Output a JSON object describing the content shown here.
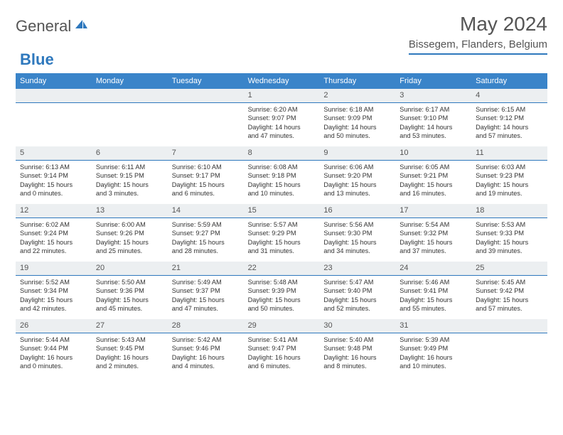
{
  "logo": {
    "word1": "General",
    "word2": "Blue"
  },
  "header": {
    "title": "May 2024",
    "location": "Bissegem, Flanders, Belgium"
  },
  "colors": {
    "accent": "#3a84c9",
    "rule": "#2e78bd",
    "dayHeader": "#eceff1"
  },
  "weekdays": [
    "Sunday",
    "Monday",
    "Tuesday",
    "Wednesday",
    "Thursday",
    "Friday",
    "Saturday"
  ],
  "weeks": [
    [
      {
        "n": "",
        "l": [
          "",
          "",
          "",
          ""
        ]
      },
      {
        "n": "",
        "l": [
          "",
          "",
          "",
          ""
        ]
      },
      {
        "n": "",
        "l": [
          "",
          "",
          "",
          ""
        ]
      },
      {
        "n": "1",
        "l": [
          "Sunrise: 6:20 AM",
          "Sunset: 9:07 PM",
          "Daylight: 14 hours",
          "and 47 minutes."
        ]
      },
      {
        "n": "2",
        "l": [
          "Sunrise: 6:18 AM",
          "Sunset: 9:09 PM",
          "Daylight: 14 hours",
          "and 50 minutes."
        ]
      },
      {
        "n": "3",
        "l": [
          "Sunrise: 6:17 AM",
          "Sunset: 9:10 PM",
          "Daylight: 14 hours",
          "and 53 minutes."
        ]
      },
      {
        "n": "4",
        "l": [
          "Sunrise: 6:15 AM",
          "Sunset: 9:12 PM",
          "Daylight: 14 hours",
          "and 57 minutes."
        ]
      }
    ],
    [
      {
        "n": "5",
        "l": [
          "Sunrise: 6:13 AM",
          "Sunset: 9:14 PM",
          "Daylight: 15 hours",
          "and 0 minutes."
        ]
      },
      {
        "n": "6",
        "l": [
          "Sunrise: 6:11 AM",
          "Sunset: 9:15 PM",
          "Daylight: 15 hours",
          "and 3 minutes."
        ]
      },
      {
        "n": "7",
        "l": [
          "Sunrise: 6:10 AM",
          "Sunset: 9:17 PM",
          "Daylight: 15 hours",
          "and 6 minutes."
        ]
      },
      {
        "n": "8",
        "l": [
          "Sunrise: 6:08 AM",
          "Sunset: 9:18 PM",
          "Daylight: 15 hours",
          "and 10 minutes."
        ]
      },
      {
        "n": "9",
        "l": [
          "Sunrise: 6:06 AM",
          "Sunset: 9:20 PM",
          "Daylight: 15 hours",
          "and 13 minutes."
        ]
      },
      {
        "n": "10",
        "l": [
          "Sunrise: 6:05 AM",
          "Sunset: 9:21 PM",
          "Daylight: 15 hours",
          "and 16 minutes."
        ]
      },
      {
        "n": "11",
        "l": [
          "Sunrise: 6:03 AM",
          "Sunset: 9:23 PM",
          "Daylight: 15 hours",
          "and 19 minutes."
        ]
      }
    ],
    [
      {
        "n": "12",
        "l": [
          "Sunrise: 6:02 AM",
          "Sunset: 9:24 PM",
          "Daylight: 15 hours",
          "and 22 minutes."
        ]
      },
      {
        "n": "13",
        "l": [
          "Sunrise: 6:00 AM",
          "Sunset: 9:26 PM",
          "Daylight: 15 hours",
          "and 25 minutes."
        ]
      },
      {
        "n": "14",
        "l": [
          "Sunrise: 5:59 AM",
          "Sunset: 9:27 PM",
          "Daylight: 15 hours",
          "and 28 minutes."
        ]
      },
      {
        "n": "15",
        "l": [
          "Sunrise: 5:57 AM",
          "Sunset: 9:29 PM",
          "Daylight: 15 hours",
          "and 31 minutes."
        ]
      },
      {
        "n": "16",
        "l": [
          "Sunrise: 5:56 AM",
          "Sunset: 9:30 PM",
          "Daylight: 15 hours",
          "and 34 minutes."
        ]
      },
      {
        "n": "17",
        "l": [
          "Sunrise: 5:54 AM",
          "Sunset: 9:32 PM",
          "Daylight: 15 hours",
          "and 37 minutes."
        ]
      },
      {
        "n": "18",
        "l": [
          "Sunrise: 5:53 AM",
          "Sunset: 9:33 PM",
          "Daylight: 15 hours",
          "and 39 minutes."
        ]
      }
    ],
    [
      {
        "n": "19",
        "l": [
          "Sunrise: 5:52 AM",
          "Sunset: 9:34 PM",
          "Daylight: 15 hours",
          "and 42 minutes."
        ]
      },
      {
        "n": "20",
        "l": [
          "Sunrise: 5:50 AM",
          "Sunset: 9:36 PM",
          "Daylight: 15 hours",
          "and 45 minutes."
        ]
      },
      {
        "n": "21",
        "l": [
          "Sunrise: 5:49 AM",
          "Sunset: 9:37 PM",
          "Daylight: 15 hours",
          "and 47 minutes."
        ]
      },
      {
        "n": "22",
        "l": [
          "Sunrise: 5:48 AM",
          "Sunset: 9:39 PM",
          "Daylight: 15 hours",
          "and 50 minutes."
        ]
      },
      {
        "n": "23",
        "l": [
          "Sunrise: 5:47 AM",
          "Sunset: 9:40 PM",
          "Daylight: 15 hours",
          "and 52 minutes."
        ]
      },
      {
        "n": "24",
        "l": [
          "Sunrise: 5:46 AM",
          "Sunset: 9:41 PM",
          "Daylight: 15 hours",
          "and 55 minutes."
        ]
      },
      {
        "n": "25",
        "l": [
          "Sunrise: 5:45 AM",
          "Sunset: 9:42 PM",
          "Daylight: 15 hours",
          "and 57 minutes."
        ]
      }
    ],
    [
      {
        "n": "26",
        "l": [
          "Sunrise: 5:44 AM",
          "Sunset: 9:44 PM",
          "Daylight: 16 hours",
          "and 0 minutes."
        ]
      },
      {
        "n": "27",
        "l": [
          "Sunrise: 5:43 AM",
          "Sunset: 9:45 PM",
          "Daylight: 16 hours",
          "and 2 minutes."
        ]
      },
      {
        "n": "28",
        "l": [
          "Sunrise: 5:42 AM",
          "Sunset: 9:46 PM",
          "Daylight: 16 hours",
          "and 4 minutes."
        ]
      },
      {
        "n": "29",
        "l": [
          "Sunrise: 5:41 AM",
          "Sunset: 9:47 PM",
          "Daylight: 16 hours",
          "and 6 minutes."
        ]
      },
      {
        "n": "30",
        "l": [
          "Sunrise: 5:40 AM",
          "Sunset: 9:48 PM",
          "Daylight: 16 hours",
          "and 8 minutes."
        ]
      },
      {
        "n": "31",
        "l": [
          "Sunrise: 5:39 AM",
          "Sunset: 9:49 PM",
          "Daylight: 16 hours",
          "and 10 minutes."
        ]
      },
      {
        "n": "",
        "l": [
          "",
          "",
          "",
          ""
        ]
      }
    ]
  ]
}
